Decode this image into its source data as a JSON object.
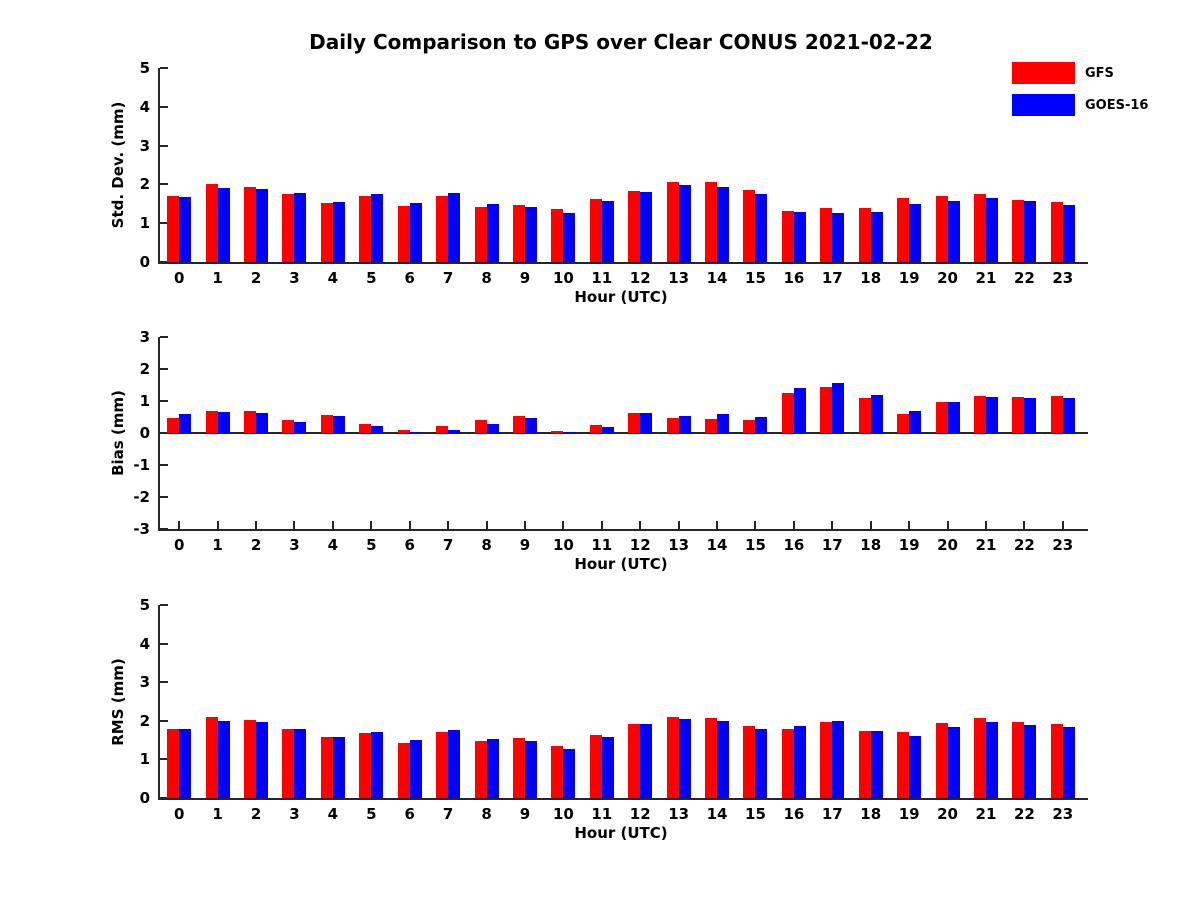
{
  "figure": {
    "title": "Daily Comparison to GPS over Clear CONUS 2021-02-22",
    "background_color": "#ffffff",
    "axis_color": "#262626",
    "text_color": "#000000"
  },
  "legend": {
    "position": "top-right",
    "items": [
      {
        "label": "GFS",
        "color": "#ff0000"
      },
      {
        "label": "GOES-16",
        "color": "#0000ff"
      }
    ]
  },
  "chart_data": [
    {
      "type": "bar",
      "panel": "std-dev",
      "ylabel": "Std. Dev. (mm)",
      "xlabel": "Hour (UTC)",
      "ylim": [
        0,
        5
      ],
      "yticks": [
        0,
        1,
        2,
        3,
        4,
        5
      ],
      "grid": false,
      "categories": [
        "0",
        "1",
        "2",
        "3",
        "4",
        "5",
        "6",
        "7",
        "8",
        "9",
        "10",
        "11",
        "12",
        "13",
        "14",
        "15",
        "16",
        "17",
        "18",
        "19",
        "20",
        "21",
        "22",
        "23"
      ],
      "series": [
        {
          "name": "GFS",
          "color": "#ff0000",
          "values": [
            1.7,
            2.02,
            1.93,
            1.76,
            1.52,
            1.7,
            1.45,
            1.71,
            1.43,
            1.47,
            1.37,
            1.62,
            1.84,
            2.07,
            2.05,
            1.85,
            1.32,
            1.4,
            1.38,
            1.64,
            1.71,
            1.74,
            1.61,
            1.54
          ]
        },
        {
          "name": "GOES-16",
          "color": "#0000ff",
          "values": [
            1.67,
            1.9,
            1.87,
            1.78,
            1.54,
            1.74,
            1.52,
            1.79,
            1.5,
            1.41,
            1.27,
            1.57,
            1.81,
            1.99,
            1.93,
            1.75,
            1.29,
            1.27,
            1.3,
            1.49,
            1.56,
            1.66,
            1.56,
            1.48
          ]
        }
      ]
    },
    {
      "type": "bar",
      "panel": "bias",
      "ylabel": "Bias (mm)",
      "xlabel": "Hour (UTC)",
      "ylim": [
        -3,
        3
      ],
      "yticks": [
        -3,
        -2,
        -1,
        0,
        1,
        2,
        3
      ],
      "grid": false,
      "categories": [
        "0",
        "1",
        "2",
        "3",
        "4",
        "5",
        "6",
        "7",
        "8",
        "9",
        "10",
        "11",
        "12",
        "13",
        "14",
        "15",
        "16",
        "17",
        "18",
        "19",
        "20",
        "21",
        "22",
        "23"
      ],
      "series": [
        {
          "name": "GFS",
          "color": "#ff0000",
          "values": [
            0.48,
            0.7,
            0.68,
            0.4,
            0.57,
            0.27,
            0.1,
            0.22,
            0.42,
            0.52,
            0.07,
            0.24,
            0.62,
            0.47,
            0.45,
            0.41,
            1.25,
            1.43,
            1.08,
            0.6,
            0.97,
            1.15,
            1.12,
            1.15
          ]
        },
        {
          "name": "GOES-16",
          "color": "#0000ff",
          "values": [
            0.58,
            0.67,
            0.63,
            0.35,
            0.54,
            0.23,
            0.04,
            0.1,
            0.28,
            0.46,
            0.04,
            0.2,
            0.62,
            0.53,
            0.6,
            0.5,
            1.4,
            1.57,
            1.2,
            0.68,
            0.97,
            1.12,
            1.08,
            1.08
          ]
        }
      ]
    },
    {
      "type": "bar",
      "panel": "rms",
      "ylabel": "RMS (mm)",
      "xlabel": "Hour (UTC)",
      "ylim": [
        0,
        5
      ],
      "yticks": [
        0,
        1,
        2,
        3,
        4,
        5
      ],
      "grid": false,
      "categories": [
        "0",
        "1",
        "2",
        "3",
        "4",
        "5",
        "6",
        "7",
        "8",
        "9",
        "10",
        "11",
        "12",
        "13",
        "14",
        "15",
        "16",
        "17",
        "18",
        "19",
        "20",
        "21",
        "22",
        "23"
      ],
      "series": [
        {
          "name": "GFS",
          "color": "#ff0000",
          "values": [
            1.8,
            2.11,
            2.03,
            1.78,
            1.57,
            1.68,
            1.43,
            1.7,
            1.47,
            1.55,
            1.36,
            1.63,
            1.92,
            2.11,
            2.08,
            1.87,
            1.79,
            1.97,
            1.73,
            1.71,
            1.95,
            2.07,
            1.96,
            1.91
          ]
        },
        {
          "name": "GOES-16",
          "color": "#0000ff",
          "values": [
            1.78,
            1.99,
            1.97,
            1.8,
            1.59,
            1.72,
            1.49,
            1.77,
            1.52,
            1.48,
            1.27,
            1.58,
            1.91,
            2.04,
            2.0,
            1.79,
            1.87,
            2.0,
            1.73,
            1.6,
            1.84,
            1.97,
            1.88,
            1.83
          ]
        }
      ]
    }
  ]
}
